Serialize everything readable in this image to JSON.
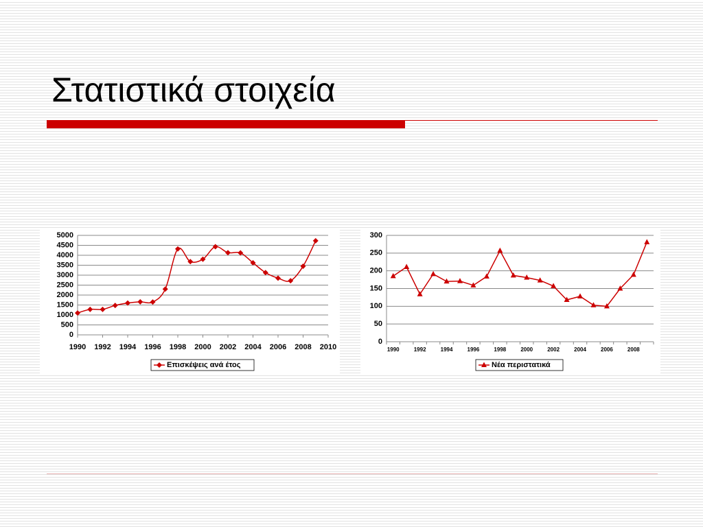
{
  "slide": {
    "title": "Στατιστικά στοιχεία"
  },
  "chart_data": [
    {
      "type": "line",
      "smooth": true,
      "marker": "diamond",
      "grid": true,
      "x": [
        1990,
        1991,
        1992,
        1993,
        1994,
        1995,
        1996,
        1997,
        1998,
        1999,
        2000,
        2001,
        2002,
        2003,
        2004,
        2005,
        2006,
        2007,
        2008,
        2009
      ],
      "xlim": [
        1990,
        2010
      ],
      "xticks": [
        1990,
        1992,
        1994,
        1996,
        1998,
        2000,
        2002,
        2004,
        2006,
        2008,
        2010
      ],
      "ylim": [
        0,
        5000
      ],
      "yticks": [
        0,
        500,
        1000,
        1500,
        2000,
        2500,
        3000,
        3500,
        4000,
        4500,
        5000
      ],
      "series": [
        {
          "name": "Επισκέψεις ανά έτος",
          "color": "#cc0000",
          "values": [
            1100,
            1280,
            1280,
            1480,
            1600,
            1660,
            1650,
            2300,
            4320,
            3680,
            3800,
            4430,
            4130,
            4120,
            3620,
            3130,
            2850,
            2720,
            3450,
            4730
          ]
        }
      ]
    },
    {
      "type": "line",
      "smooth": false,
      "marker": "triangle",
      "grid": true,
      "categories": [
        1990,
        null,
        1992,
        null,
        1994,
        null,
        1996,
        null,
        1998,
        null,
        2000,
        null,
        2002,
        null,
        2004,
        null,
        2006,
        null,
        2008,
        null
      ],
      "ylim": [
        0,
        300
      ],
      "yticks": [
        0,
        50,
        100,
        150,
        200,
        250,
        300
      ],
      "series": [
        {
          "name": "Νέα περιστατικά",
          "color": "#cc0000",
          "values": [
            185,
            211,
            134,
            191,
            170,
            171,
            159,
            184,
            257,
            187,
            181,
            173,
            157,
            118,
            128,
            103,
            100,
            150,
            189,
            281
          ]
        }
      ]
    }
  ]
}
